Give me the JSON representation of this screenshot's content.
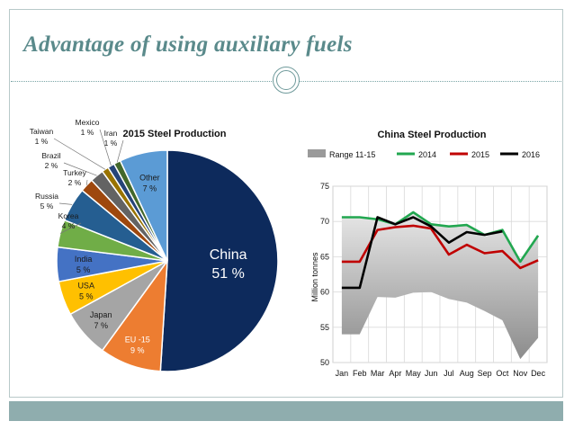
{
  "slide": {
    "title": "Advantage  of  using  auxiliary  fuels"
  },
  "chart_data": [
    {
      "type": "pie",
      "title": "2015 Steel Production",
      "slices": [
        {
          "name": "China",
          "value": 51,
          "label": "51 %",
          "color": "#0d2a5c"
        },
        {
          "name": "EU -15",
          "value": 9,
          "label": "9 %",
          "color": "#ed7d31"
        },
        {
          "name": "Japan",
          "value": 7,
          "label": "7 %",
          "color": "#a5a5a5"
        },
        {
          "name": "USA",
          "value": 5,
          "label": "5 %",
          "color": "#ffc000"
        },
        {
          "name": "India",
          "value": 5,
          "label": "5 %",
          "color": "#4472c4"
        },
        {
          "name": "Korea",
          "value": 4,
          "label": "4 %",
          "color": "#70ad47"
        },
        {
          "name": "Russia",
          "value": 5,
          "label": "5 %",
          "color": "#255e91"
        },
        {
          "name": "Turkey",
          "value": 2,
          "label": "2 %",
          "color": "#9e480e"
        },
        {
          "name": "Brazil",
          "value": 2,
          "label": "2 %",
          "color": "#636363"
        },
        {
          "name": "Taiwan",
          "value": 1,
          "label": "1 %",
          "color": "#997300"
        },
        {
          "name": "Mexico",
          "value": 1,
          "label": "1 %",
          "color": "#264478"
        },
        {
          "name": "Iran",
          "value": 1,
          "label": "1 %",
          "color": "#43682b"
        },
        {
          "name": "Other",
          "value": 7,
          "label": "7 %",
          "color": "#5b9bd5"
        }
      ]
    },
    {
      "type": "line",
      "title": "China Steel Production",
      "ylabel": "Million tonnes",
      "ylim": [
        50,
        75
      ],
      "yticks": [
        50,
        55,
        60,
        65,
        70,
        75
      ],
      "categories": [
        "Jan",
        "Feb",
        "Mar",
        "Apr",
        "May",
        "Jun",
        "Jul",
        "Aug",
        "Sep",
        "Oct",
        "Nov",
        "Dec"
      ],
      "legend": [
        "Range 11-15",
        "2014",
        "2015",
        "2016"
      ],
      "range": {
        "name": "Range 11-15",
        "low": [
          54,
          54,
          59.3,
          59.2,
          59.9,
          60,
          59,
          58.5,
          57.3,
          56,
          50.5,
          53.5
        ],
        "high": [
          70.5,
          70.6,
          70,
          69.6,
          71.2,
          69.6,
          69.1,
          69.5,
          67.8,
          68.6,
          64.1,
          67.9
        ]
      },
      "series": [
        {
          "name": "2014",
          "color": "#22a750",
          "values": [
            70.6,
            70.6,
            70.3,
            69.6,
            71.3,
            69.6,
            69.3,
            69.5,
            68.1,
            68.8,
            64.3,
            68.0
          ]
        },
        {
          "name": "2015",
          "color": "#c00000",
          "values": [
            64.3,
            64.3,
            68.8,
            69.2,
            69.4,
            69.0,
            65.3,
            66.7,
            65.5,
            65.8,
            63.4,
            64.5
          ]
        },
        {
          "name": "2016",
          "color": "#000000",
          "values": [
            60.6,
            60.6,
            70.6,
            69.6,
            70.6,
            69.3,
            67.0,
            68.5,
            68.1,
            68.6,
            null,
            null
          ]
        }
      ]
    }
  ]
}
